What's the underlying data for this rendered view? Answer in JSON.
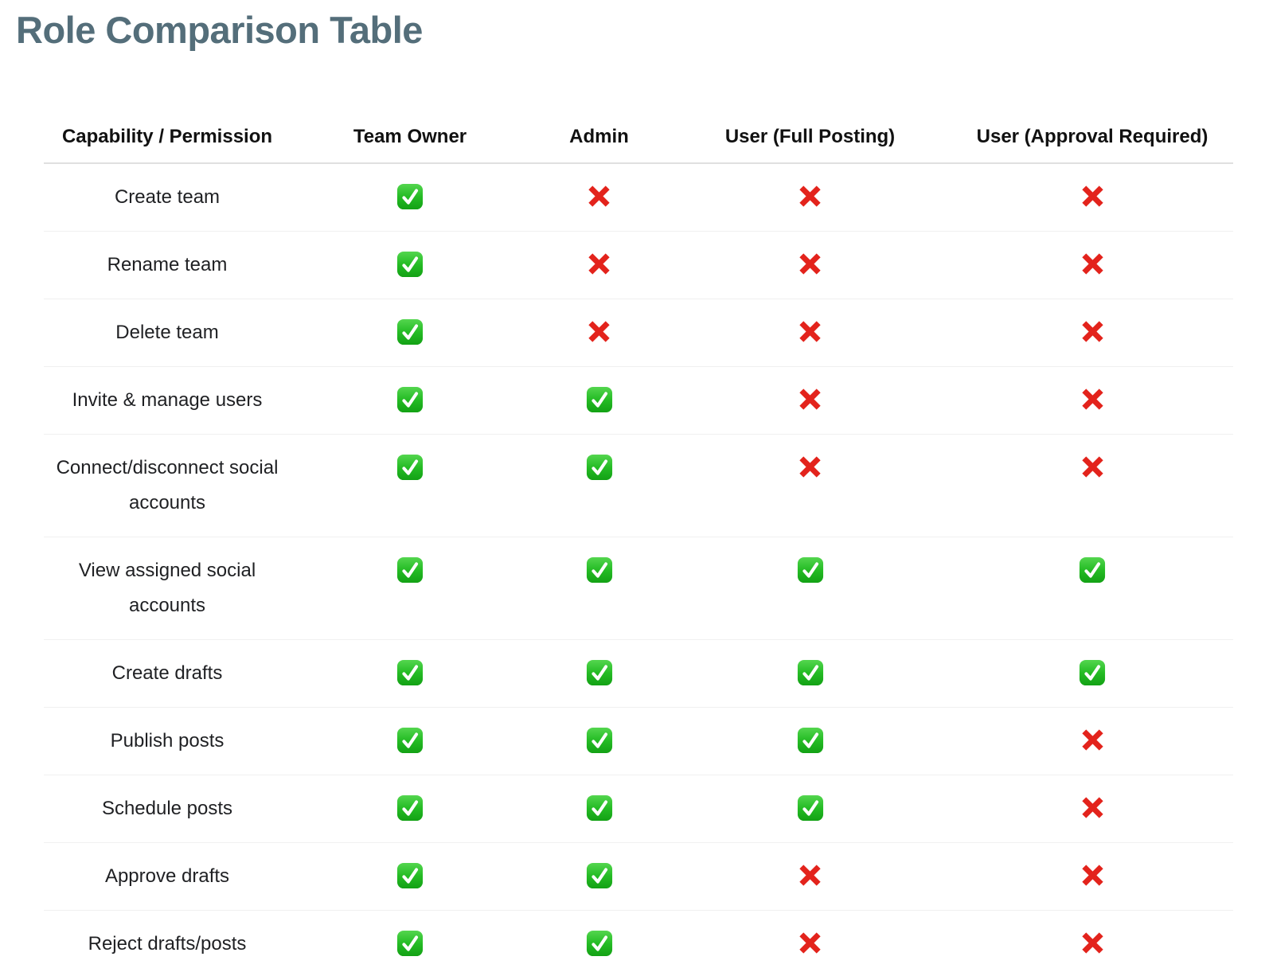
{
  "page": {
    "title": "Role Comparison Table"
  },
  "table": {
    "columns": [
      "Capability / Permission",
      "Team Owner",
      "Admin",
      "User (Full Posting)",
      "User (Approval Required)"
    ],
    "rows": [
      {
        "capability": "Create team",
        "permissions": [
          "yes",
          "no",
          "no",
          "no"
        ]
      },
      {
        "capability": "Rename team",
        "permissions": [
          "yes",
          "no",
          "no",
          "no"
        ]
      },
      {
        "capability": "Delete team",
        "permissions": [
          "yes",
          "no",
          "no",
          "no"
        ]
      },
      {
        "capability": "Invite & manage users",
        "permissions": [
          "yes",
          "yes",
          "no",
          "no"
        ]
      },
      {
        "capability": "Connect/disconnect social accounts",
        "permissions": [
          "yes",
          "yes",
          "no",
          "no"
        ]
      },
      {
        "capability": "View assigned social accounts",
        "permissions": [
          "yes",
          "yes",
          "yes",
          "yes"
        ]
      },
      {
        "capability": "Create drafts",
        "permissions": [
          "yes",
          "yes",
          "yes",
          "yes"
        ]
      },
      {
        "capability": "Publish posts",
        "permissions": [
          "yes",
          "yes",
          "yes",
          "no"
        ]
      },
      {
        "capability": "Schedule posts",
        "permissions": [
          "yes",
          "yes",
          "yes",
          "no"
        ]
      },
      {
        "capability": "Approve drafts",
        "permissions": [
          "yes",
          "yes",
          "no",
          "no"
        ]
      },
      {
        "capability": "Reject drafts/posts",
        "permissions": [
          "yes",
          "yes",
          "no",
          "no"
        ]
      }
    ],
    "icon_legend": {
      "yes": "check-icon",
      "no": "cross-icon"
    }
  },
  "colors": {
    "title": "#546e7a",
    "header_text": "#111111",
    "body_text": "#1f2023",
    "check_green_top": "#54d64f",
    "check_green_mid": "#25bc25",
    "check_green_bottom": "#13a115",
    "cross_red": "#e3231c",
    "header_rule": "#e0e0e0",
    "row_rule": "#f0f0f0"
  }
}
